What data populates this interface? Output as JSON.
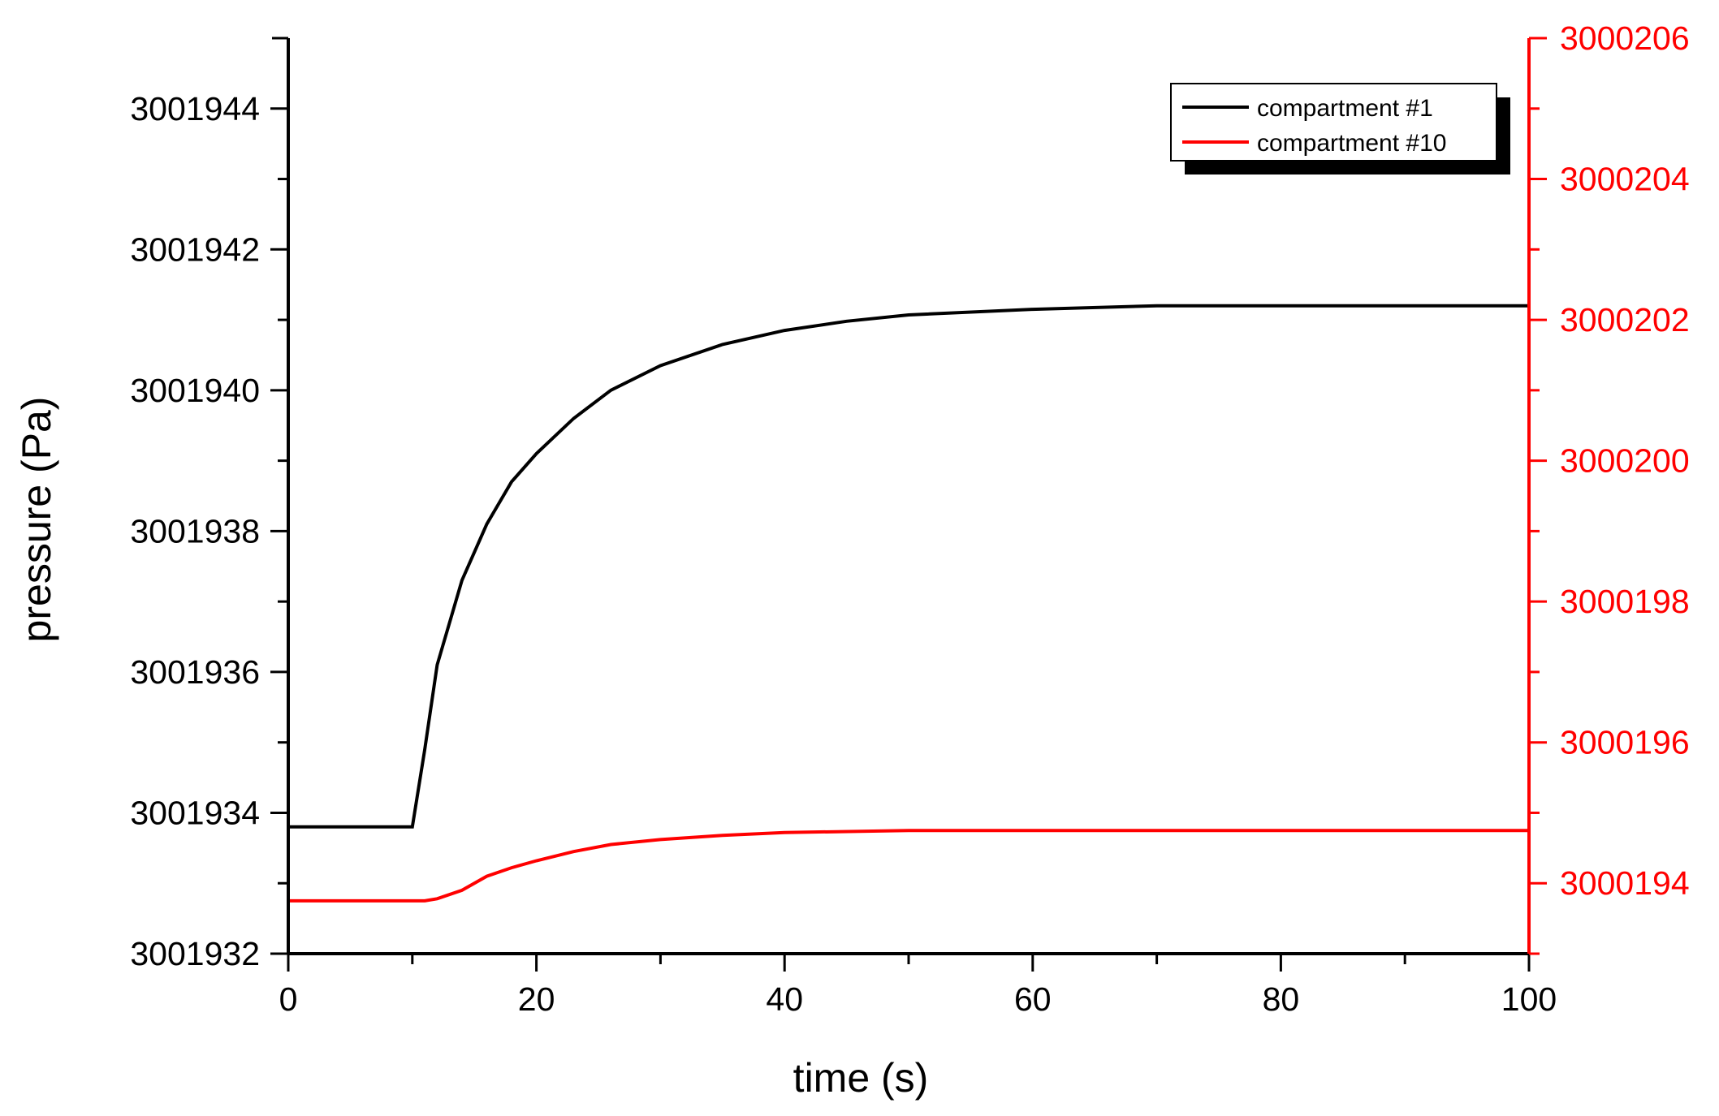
{
  "chart_data": {
    "type": "line",
    "title": "",
    "xlabel": "time (s)",
    "ylabel": "pressure (Pa)",
    "y2label": "",
    "xlim": [
      0,
      100
    ],
    "ylim": [
      3001932,
      3001945
    ],
    "y2lim": [
      3000193,
      3000206
    ],
    "x_ticks": [
      "0",
      "20",
      "40",
      "60",
      "80",
      "100"
    ],
    "y_ticks": [
      "3001932",
      "3001934",
      "3001936",
      "3001938",
      "3001940",
      "3001942",
      "3001944"
    ],
    "y2_ticks": [
      "3000194",
      "3000196",
      "3000198",
      "3000200",
      "3000202",
      "3000204",
      "3000206"
    ],
    "grid": false,
    "legend_position": "upper right",
    "colors": {
      "axis_left": "#000000",
      "axis_right": "#ff0000"
    },
    "series": [
      {
        "name": "compartment #1",
        "axis": "left",
        "color": "#000000",
        "x": [
          0,
          10,
          11,
          12,
          14,
          16,
          18,
          20,
          23,
          26,
          30,
          35,
          40,
          45,
          50,
          60,
          70,
          80,
          100
        ],
        "y": [
          3001933.8,
          3001933.8,
          3001934.9,
          3001936.1,
          3001937.3,
          3001938.1,
          3001938.7,
          3001939.1,
          3001939.6,
          3001940.0,
          3001940.35,
          3001940.65,
          3001940.85,
          3001940.98,
          3001941.07,
          3001941.15,
          3001941.2,
          3001941.2,
          3001941.2
        ]
      },
      {
        "name": "compartment #10",
        "axis": "right",
        "color": "#ff0000",
        "x": [
          0,
          11,
          12,
          14,
          16,
          18,
          20,
          23,
          26,
          30,
          35,
          40,
          50,
          60,
          100
        ],
        "y": [
          3000193.75,
          3000193.75,
          3000193.78,
          3000193.9,
          3000194.1,
          3000194.22,
          3000194.32,
          3000194.45,
          3000194.55,
          3000194.62,
          3000194.68,
          3000194.72,
          3000194.75,
          3000194.75,
          3000194.75
        ]
      }
    ]
  },
  "legend": {
    "items": [
      "compartment #1",
      "compartment #10"
    ]
  }
}
